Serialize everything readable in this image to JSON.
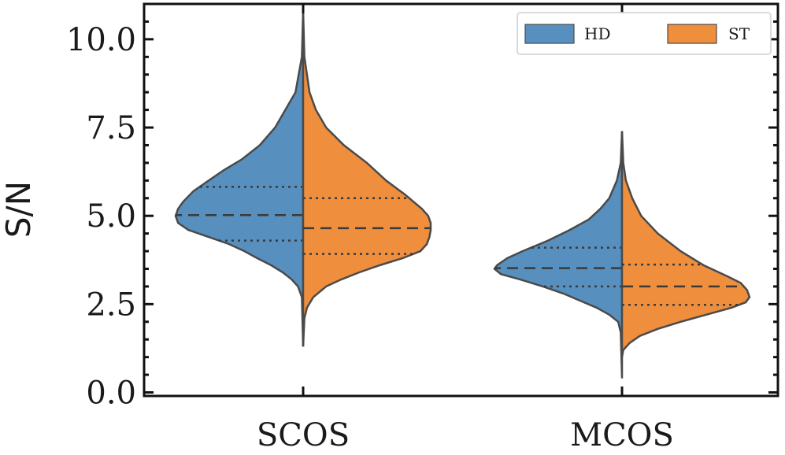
{
  "chart_data": {
    "type": "violin",
    "split": true,
    "xlabel": "",
    "ylabel": "S/N",
    "categories": [
      "SCOS",
      "MCOS"
    ],
    "ylim": [
      -0.1,
      11.0
    ],
    "yticks": [
      0.0,
      2.5,
      5.0,
      7.5,
      10.0
    ],
    "ytick_labels": [
      "0.0",
      "2.5",
      "5.0",
      "7.5",
      "10.0"
    ],
    "legend": {
      "position": "top-right",
      "ncol": 2
    },
    "series": [
      {
        "name": "HD",
        "color": "#5790bf",
        "groups": [
          {
            "category": "SCOS",
            "q1": 4.3,
            "median": 5.02,
            "q3": 5.82,
            "profile": [
              [
                10.8,
                0.0
              ],
              [
                9.5,
                0.01
              ],
              [
                8.5,
                0.06
              ],
              [
                7.5,
                0.22
              ],
              [
                7.0,
                0.34
              ],
              [
                6.6,
                0.48
              ],
              [
                6.3,
                0.62
              ],
              [
                6.0,
                0.74
              ],
              [
                5.7,
                0.86
              ],
              [
                5.4,
                0.94
              ],
              [
                5.2,
                0.98
              ],
              [
                5.0,
                1.0
              ],
              [
                4.8,
                0.98
              ],
              [
                4.6,
                0.9
              ],
              [
                4.4,
                0.74
              ],
              [
                4.2,
                0.58
              ],
              [
                4.0,
                0.46
              ],
              [
                3.8,
                0.36
              ],
              [
                3.6,
                0.25
              ],
              [
                3.4,
                0.16
              ],
              [
                3.2,
                0.09
              ],
              [
                3.0,
                0.04
              ],
              [
                2.7,
                0.01
              ],
              [
                1.3,
                0.0
              ]
            ]
          },
          {
            "category": "MCOS",
            "q1": 3.0,
            "median": 3.52,
            "q3": 4.1,
            "profile": [
              [
                7.4,
                0.0
              ],
              [
                6.5,
                0.01
              ],
              [
                6.0,
                0.04
              ],
              [
                5.5,
                0.1
              ],
              [
                5.2,
                0.17
              ],
              [
                4.9,
                0.26
              ],
              [
                4.6,
                0.41
              ],
              [
                4.3,
                0.58
              ],
              [
                4.0,
                0.78
              ],
              [
                3.8,
                0.9
              ],
              [
                3.6,
                0.98
              ],
              [
                3.5,
                1.0
              ],
              [
                3.35,
                0.95
              ],
              [
                3.2,
                0.8
              ],
              [
                3.0,
                0.62
              ],
              [
                2.8,
                0.46
              ],
              [
                2.6,
                0.33
              ],
              [
                2.4,
                0.2
              ],
              [
                2.2,
                0.1
              ],
              [
                2.0,
                0.03
              ],
              [
                1.7,
                0.01
              ],
              [
                0.4,
                0.0
              ]
            ]
          }
        ]
      },
      {
        "name": "ST",
        "color": "#ef8e3c",
        "groups": [
          {
            "category": "SCOS",
            "q1": 3.92,
            "median": 4.65,
            "q3": 5.5,
            "profile": [
              [
                10.8,
                0.0
              ],
              [
                9.5,
                0.01
              ],
              [
                8.5,
                0.05
              ],
              [
                8.0,
                0.1
              ],
              [
                7.5,
                0.18
              ],
              [
                7.0,
                0.32
              ],
              [
                6.5,
                0.5
              ],
              [
                6.0,
                0.65
              ],
              [
                5.6,
                0.8
              ],
              [
                5.2,
                0.93
              ],
              [
                5.0,
                0.98
              ],
              [
                4.8,
                1.0
              ],
              [
                4.6,
                1.0
              ],
              [
                4.4,
                0.99
              ],
              [
                4.2,
                0.97
              ],
              [
                4.0,
                0.92
              ],
              [
                3.8,
                0.78
              ],
              [
                3.6,
                0.6
              ],
              [
                3.4,
                0.44
              ],
              [
                3.2,
                0.3
              ],
              [
                3.0,
                0.18
              ],
              [
                2.7,
                0.08
              ],
              [
                2.4,
                0.03
              ],
              [
                2.1,
                0.01
              ],
              [
                1.3,
                0.0
              ]
            ]
          },
          {
            "category": "MCOS",
            "q1": 2.48,
            "median": 3.0,
            "q3": 3.62,
            "profile": [
              [
                7.4,
                0.0
              ],
              [
                6.5,
                0.01
              ],
              [
                6.0,
                0.03
              ],
              [
                5.5,
                0.08
              ],
              [
                5.0,
                0.15
              ],
              [
                4.5,
                0.28
              ],
              [
                4.0,
                0.46
              ],
              [
                3.6,
                0.64
              ],
              [
                3.3,
                0.82
              ],
              [
                3.1,
                0.93
              ],
              [
                2.9,
                0.98
              ],
              [
                2.7,
                1.0
              ],
              [
                2.55,
                0.97
              ],
              [
                2.4,
                0.86
              ],
              [
                2.2,
                0.66
              ],
              [
                2.0,
                0.46
              ],
              [
                1.8,
                0.28
              ],
              [
                1.6,
                0.14
              ],
              [
                1.4,
                0.06
              ],
              [
                1.2,
                0.01
              ],
              [
                1.0,
                0.0
              ]
            ]
          }
        ]
      }
    ]
  }
}
